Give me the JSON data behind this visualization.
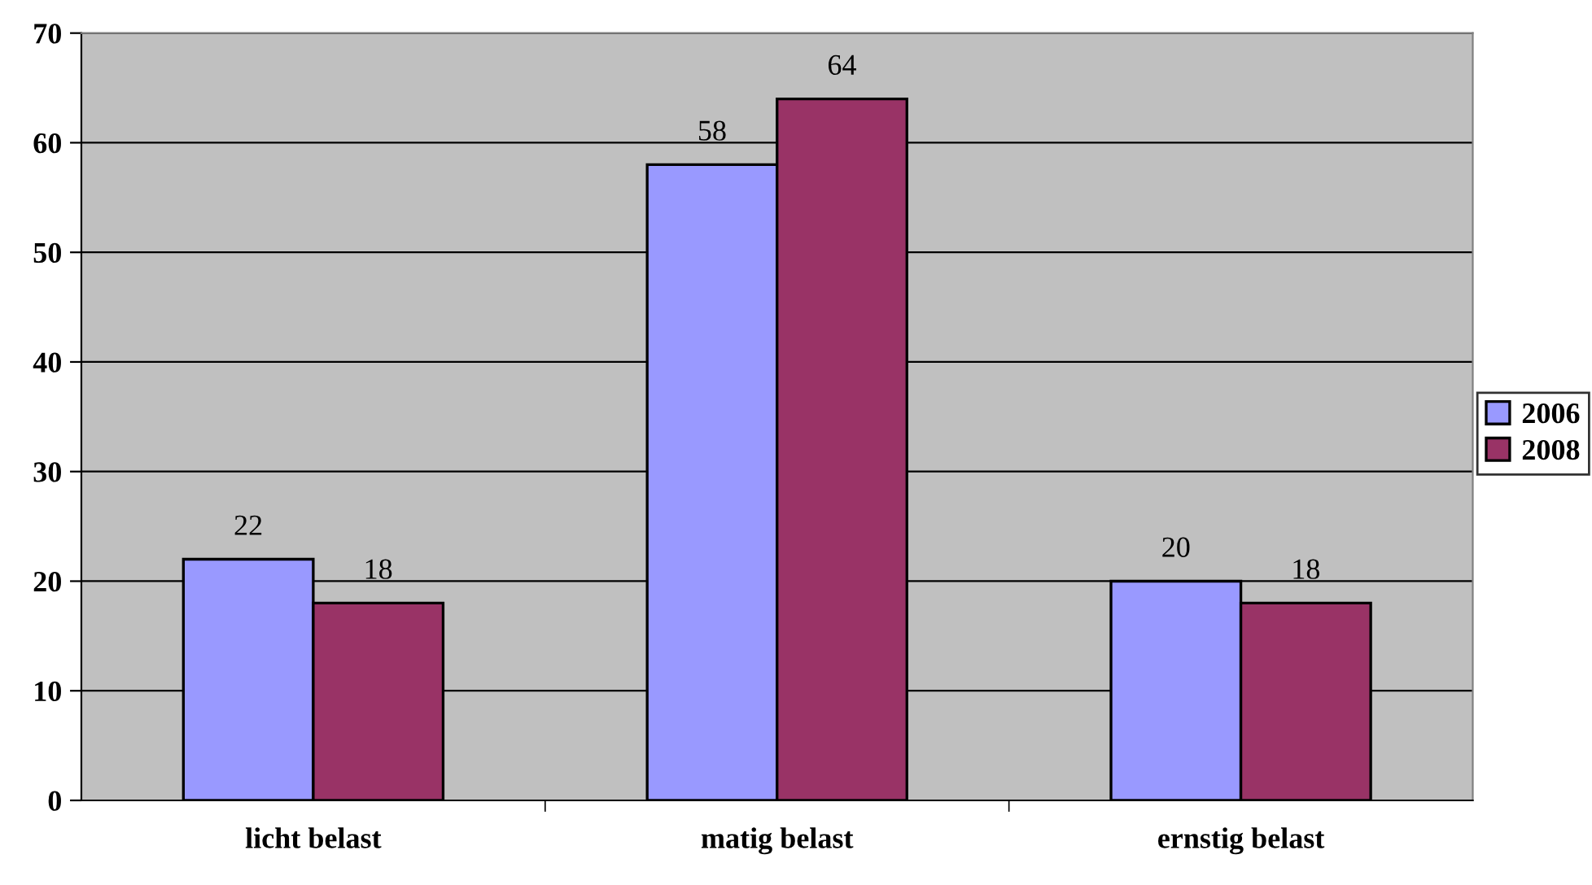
{
  "chart_data": {
    "type": "bar",
    "categories": [
      "licht belast",
      "matig belast",
      "ernstig belast"
    ],
    "series": [
      {
        "name": "2006",
        "color": "#9999ff",
        "values": [
          22,
          58,
          20
        ]
      },
      {
        "name": "2008",
        "color": "#993366",
        "values": [
          18,
          64,
          18
        ]
      }
    ],
    "ylim": [
      0,
      70
    ],
    "yticks": [
      0,
      10,
      20,
      30,
      40,
      50,
      60,
      70
    ],
    "grid": "y",
    "legend": "right",
    "data_labels": true
  }
}
